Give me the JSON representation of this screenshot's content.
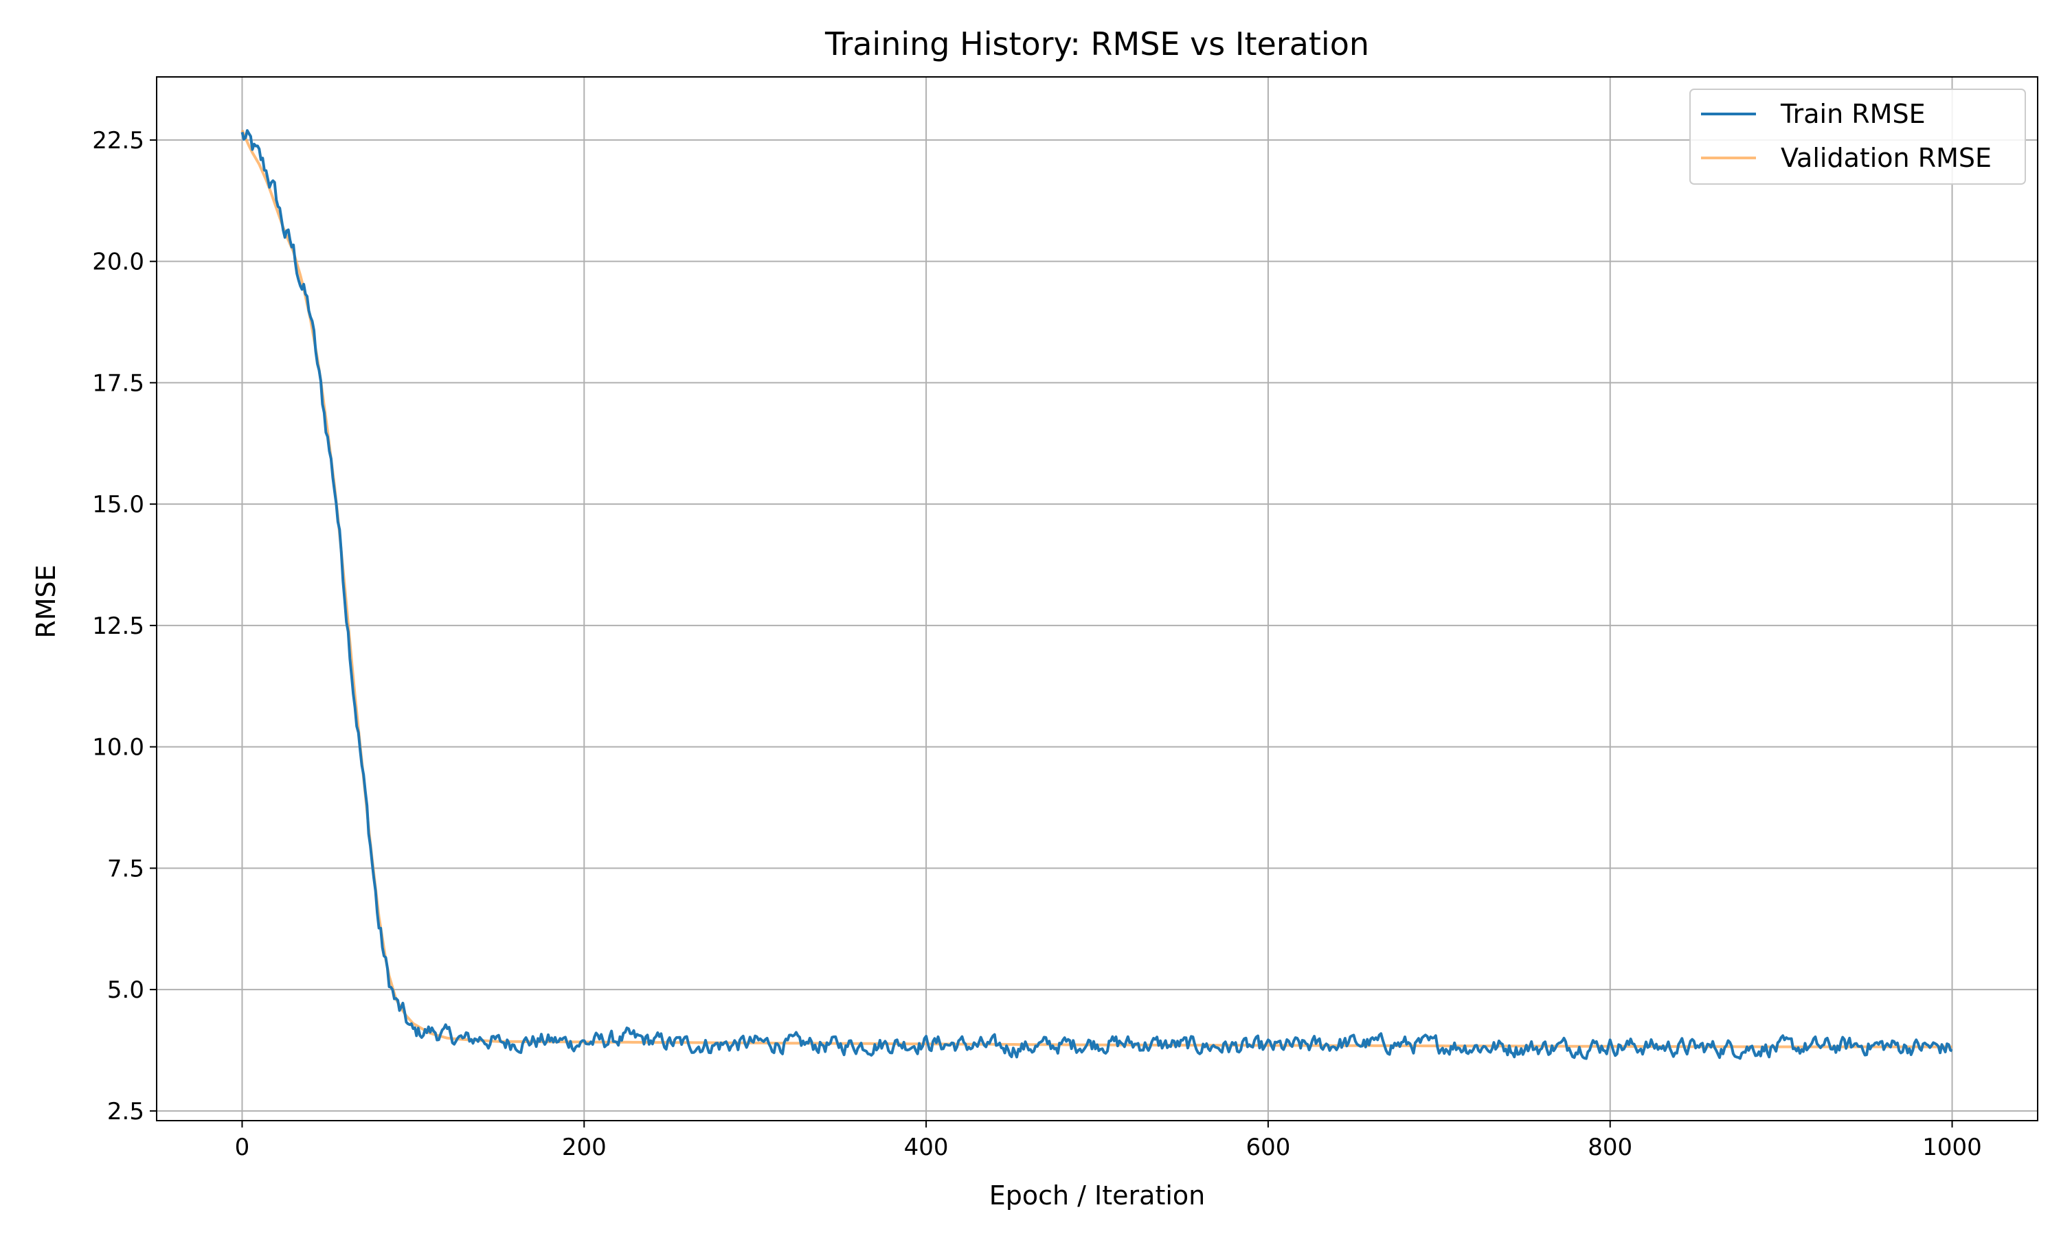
{
  "chart_data": {
    "type": "line",
    "title": "Training History: RMSE vs Iteration",
    "xlabel": "Epoch / Iteration",
    "ylabel": "RMSE",
    "xlim": [
      -50,
      1050
    ],
    "ylim": [
      2.3,
      23.8
    ],
    "xticks": [
      0,
      200,
      400,
      600,
      800,
      1000
    ],
    "xtick_labels": [
      "0",
      "200",
      "400",
      "600",
      "800",
      "1000"
    ],
    "yticks": [
      2.5,
      5.0,
      7.5,
      10.0,
      12.5,
      15.0,
      17.5,
      20.0,
      22.5
    ],
    "ytick_labels": [
      "2.5",
      "5.0",
      "7.5",
      "10.0",
      "12.5",
      "15.0",
      "17.5",
      "20.0",
      "22.5"
    ],
    "grid": true,
    "legend_position": "top-right",
    "series": [
      {
        "name": "Train RMSE",
        "color": "#1f77b4",
        "x": [
          0,
          5,
          10,
          15,
          20,
          25,
          30,
          35,
          40,
          45,
          50,
          55,
          60,
          65,
          70,
          75,
          80,
          85,
          90,
          95,
          100,
          110,
          120,
          130,
          140,
          150,
          175,
          200,
          225,
          250,
          275,
          300,
          350,
          400,
          450,
          500,
          550,
          600,
          650,
          700,
          750,
          800,
          850,
          900,
          950,
          1000
        ],
        "values": [
          22.6,
          22.4,
          22.1,
          21.8,
          21.3,
          20.6,
          20.2,
          19.5,
          18.9,
          17.6,
          16.4,
          15.1,
          13.2,
          11.3,
          9.6,
          8.0,
          6.3,
          5.3,
          4.7,
          4.4,
          4.1,
          4.15,
          4.05,
          3.95,
          4.0,
          3.9,
          3.95,
          3.9,
          4.0,
          3.9,
          3.85,
          3.9,
          3.85,
          3.9,
          3.8,
          3.9,
          3.85,
          3.8,
          3.9,
          3.85,
          3.8,
          3.85,
          3.8,
          3.8,
          3.85,
          3.8
        ],
        "noise": 0.2,
        "noise_from_x": 95
      },
      {
        "name": "Validation RMSE",
        "color": "#ffa64d",
        "x": [
          0,
          5,
          10,
          15,
          20,
          25,
          30,
          35,
          40,
          45,
          50,
          55,
          60,
          65,
          70,
          75,
          80,
          85,
          90,
          95,
          100,
          110,
          120,
          130,
          140,
          150,
          200,
          300,
          400,
          500,
          600,
          700,
          800,
          900,
          1000
        ],
        "values": [
          22.7,
          22.3,
          22.0,
          21.6,
          21.1,
          20.6,
          20.2,
          19.6,
          18.8,
          17.8,
          16.5,
          15.1,
          13.3,
          11.4,
          9.7,
          8.0,
          6.5,
          5.4,
          4.8,
          4.5,
          4.3,
          4.1,
          4.0,
          3.97,
          3.95,
          3.93,
          3.92,
          3.9,
          3.88,
          3.86,
          3.85,
          3.84,
          3.83,
          3.82,
          3.82
        ]
      }
    ]
  }
}
